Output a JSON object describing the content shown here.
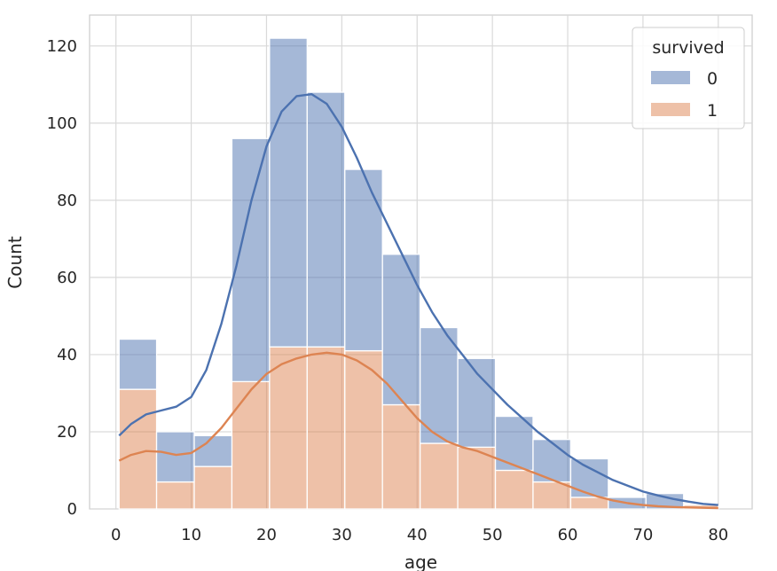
{
  "chart_data": {
    "type": "bar",
    "stacked": true,
    "xlabel": "age",
    "ylabel": "Count",
    "xlim": [
      -3.5,
      84.5
    ],
    "ylim": [
      0,
      128
    ],
    "xticks": [
      0,
      10,
      20,
      30,
      40,
      50,
      60,
      70,
      80
    ],
    "yticks": [
      0,
      20,
      40,
      60,
      80,
      100,
      120
    ],
    "grid": true,
    "bins": [
      [
        0.42,
        5.4
      ],
      [
        5.4,
        10.4
      ],
      [
        10.4,
        15.4
      ],
      [
        15.4,
        20.4
      ],
      [
        20.4,
        25.4
      ],
      [
        25.4,
        30.4
      ],
      [
        30.4,
        35.4
      ],
      [
        35.4,
        40.4
      ],
      [
        40.4,
        45.4
      ],
      [
        45.4,
        50.4
      ],
      [
        50.4,
        55.4
      ],
      [
        55.4,
        60.4
      ],
      [
        60.4,
        65.4
      ],
      [
        65.4,
        70.4
      ],
      [
        70.4,
        75.4
      ],
      [
        75.4,
        80.0
      ]
    ],
    "series": [
      {
        "name": "1",
        "color": "#dd8452",
        "values": [
          31,
          7,
          11,
          33,
          42,
          42,
          41,
          27,
          17,
          16,
          10,
          7,
          3,
          0,
          0,
          1
        ]
      },
      {
        "name": "0",
        "color": "#4c72b0",
        "values": [
          13,
          13,
          8,
          63,
          80,
          66,
          47,
          39,
          30,
          23,
          14,
          11,
          10,
          3,
          4,
          0
        ]
      }
    ],
    "kde": [
      {
        "series": "0",
        "color": "#4c72b0",
        "points": [
          [
            0.42,
            19
          ],
          [
            2,
            22
          ],
          [
            4,
            24.5
          ],
          [
            6,
            25.5
          ],
          [
            8,
            26.5
          ],
          [
            10,
            29
          ],
          [
            12,
            36
          ],
          [
            14,
            48
          ],
          [
            16,
            63
          ],
          [
            18,
            80
          ],
          [
            20,
            94
          ],
          [
            22,
            103
          ],
          [
            24,
            107
          ],
          [
            26,
            107.5
          ],
          [
            28,
            105
          ],
          [
            30,
            99
          ],
          [
            32,
            91
          ],
          [
            34,
            82
          ],
          [
            36,
            74
          ],
          [
            38,
            66
          ],
          [
            40,
            58
          ],
          [
            42,
            51
          ],
          [
            44,
            45
          ],
          [
            46,
            40
          ],
          [
            48,
            35
          ],
          [
            50,
            31
          ],
          [
            52,
            27
          ],
          [
            54,
            23.5
          ],
          [
            56,
            20
          ],
          [
            58,
            17
          ],
          [
            60,
            14
          ],
          [
            62,
            11.5
          ],
          [
            64,
            9.5
          ],
          [
            66,
            7.5
          ],
          [
            68,
            6
          ],
          [
            70,
            4.5
          ],
          [
            72,
            3.5
          ],
          [
            74,
            2.6
          ],
          [
            76,
            1.9
          ],
          [
            78,
            1.3
          ],
          [
            80,
            1
          ]
        ]
      },
      {
        "series": "1",
        "color": "#dd8452",
        "points": [
          [
            0.42,
            12.5
          ],
          [
            2,
            14
          ],
          [
            4,
            15
          ],
          [
            6,
            14.8
          ],
          [
            8,
            14
          ],
          [
            10,
            14.5
          ],
          [
            12,
            17
          ],
          [
            14,
            21
          ],
          [
            16,
            26
          ],
          [
            18,
            31
          ],
          [
            20,
            35
          ],
          [
            22,
            37.5
          ],
          [
            24,
            39
          ],
          [
            26,
            40
          ],
          [
            28,
            40.5
          ],
          [
            30,
            40
          ],
          [
            32,
            38.5
          ],
          [
            34,
            36
          ],
          [
            36,
            32.5
          ],
          [
            38,
            28
          ],
          [
            40,
            23.5
          ],
          [
            42,
            20
          ],
          [
            44,
            17.5
          ],
          [
            46,
            16
          ],
          [
            48,
            15
          ],
          [
            50,
            13.5
          ],
          [
            52,
            12
          ],
          [
            54,
            10.5
          ],
          [
            56,
            9
          ],
          [
            58,
            7.5
          ],
          [
            60,
            6
          ],
          [
            62,
            4.5
          ],
          [
            64,
            3.2
          ],
          [
            66,
            2.2
          ],
          [
            68,
            1.5
          ],
          [
            70,
            1
          ],
          [
            72,
            0.7
          ],
          [
            74,
            0.5
          ],
          [
            76,
            0.4
          ],
          [
            78,
            0.3
          ],
          [
            80,
            0.2
          ]
        ]
      }
    ],
    "legend": {
      "title": "survived",
      "position": "top-right",
      "entries": [
        {
          "label": "0",
          "color": "#4c72b0"
        },
        {
          "label": "1",
          "color": "#dd8452"
        }
      ]
    }
  }
}
